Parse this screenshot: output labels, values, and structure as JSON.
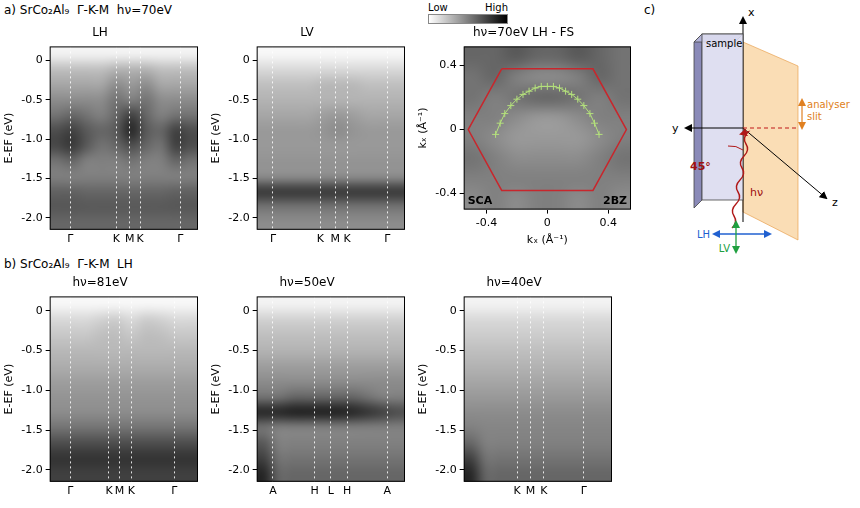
{
  "rows": [
    {
      "label": "a)",
      "title": "SrCo₂Al₉  Γ-K-M  hν=70eV"
    },
    {
      "label": "b)",
      "title": "SrCo₂Al₉  Γ-K-M  LH"
    }
  ],
  "colorbar": {
    "labels": [
      "Low",
      "High"
    ],
    "clim": [
      0,
      1
    ]
  },
  "chart_data": [
    {
      "type": "heatmap",
      "title": "LH",
      "ylabel": "E-EF (eV)",
      "grid": true,
      "xlim": [
        0,
        100
      ],
      "xticks": [
        {
          "value": 14,
          "label": "Γ"
        },
        {
          "value": 45,
          "label": "K"
        },
        {
          "value": 54,
          "label": "M"
        },
        {
          "value": 61,
          "label": "K"
        },
        {
          "value": 88,
          "label": "Γ"
        }
      ],
      "ylim": [
        -2.15,
        0.18
      ],
      "yticks": [
        0,
        -0.5,
        {
          "value": -1,
          "label": "-1.0"
        },
        -1.5,
        {
          "value": -2,
          "label": "-2.0"
        }
      ],
      "cells": [
        [
          0.05,
          0.05,
          0.05,
          0.05,
          0.05,
          0.05,
          0.05,
          0.05,
          0.05,
          0.05
        ],
        [
          0.25,
          0.25,
          0.25,
          0.25,
          0.3,
          0.3,
          0.3,
          0.25,
          0.25,
          0.25
        ],
        [
          0.35,
          0.35,
          0.35,
          0.35,
          0.45,
          0.4,
          0.45,
          0.35,
          0.35,
          0.35
        ],
        [
          0.45,
          0.45,
          0.45,
          0.45,
          0.55,
          0.5,
          0.55,
          0.45,
          0.45,
          0.45
        ],
        [
          0.55,
          0.6,
          0.55,
          0.5,
          0.6,
          0.75,
          0.6,
          0.5,
          0.55,
          0.55
        ],
        [
          0.7,
          0.75,
          0.65,
          0.6,
          0.65,
          0.85,
          0.65,
          0.6,
          0.75,
          0.7
        ],
        [
          0.72,
          0.78,
          0.65,
          0.55,
          0.6,
          0.7,
          0.6,
          0.55,
          0.75,
          0.7
        ],
        [
          0.55,
          0.6,
          0.5,
          0.5,
          0.5,
          0.55,
          0.5,
          0.5,
          0.6,
          0.55
        ],
        [
          0.5,
          0.5,
          0.5,
          0.5,
          0.5,
          0.5,
          0.5,
          0.5,
          0.5,
          0.5
        ],
        [
          0.62,
          0.62,
          0.6,
          0.6,
          0.6,
          0.6,
          0.6,
          0.6,
          0.62,
          0.62
        ],
        [
          0.66,
          0.66,
          0.65,
          0.65,
          0.65,
          0.65,
          0.65,
          0.65,
          0.66,
          0.66
        ],
        [
          0.6,
          0.6,
          0.6,
          0.6,
          0.6,
          0.6,
          0.6,
          0.6,
          0.6,
          0.6
        ]
      ]
    },
    {
      "type": "heatmap",
      "title": "LV",
      "ylabel": "E-EF (eV)",
      "grid": true,
      "xlim": [
        0,
        100
      ],
      "xticks": [
        {
          "value": 11,
          "label": "Γ"
        },
        {
          "value": 43,
          "label": "K"
        },
        {
          "value": 53,
          "label": "M"
        },
        {
          "value": 61,
          "label": "K"
        },
        {
          "value": 88,
          "label": "Γ"
        }
      ],
      "ylim": [
        -2.15,
        0.18
      ],
      "yticks": [
        0,
        -0.5,
        {
          "value": -1,
          "label": "-1.0"
        },
        -1.5,
        {
          "value": -2,
          "label": "-2.0"
        }
      ],
      "cells": [
        [
          0.03,
          0.03,
          0.03,
          0.03,
          0.03,
          0.03,
          0.03,
          0.03,
          0.03,
          0.03
        ],
        [
          0.15,
          0.15,
          0.15,
          0.15,
          0.15,
          0.15,
          0.15,
          0.15,
          0.15,
          0.15
        ],
        [
          0.25,
          0.25,
          0.25,
          0.25,
          0.28,
          0.28,
          0.28,
          0.25,
          0.25,
          0.25
        ],
        [
          0.3,
          0.3,
          0.3,
          0.3,
          0.3,
          0.3,
          0.3,
          0.3,
          0.3,
          0.3
        ],
        [
          0.35,
          0.35,
          0.35,
          0.35,
          0.38,
          0.4,
          0.38,
          0.35,
          0.35,
          0.35
        ],
        [
          0.4,
          0.4,
          0.4,
          0.4,
          0.42,
          0.45,
          0.42,
          0.4,
          0.4,
          0.4
        ],
        [
          0.4,
          0.4,
          0.4,
          0.4,
          0.4,
          0.4,
          0.4,
          0.4,
          0.4,
          0.4
        ],
        [
          0.42,
          0.42,
          0.42,
          0.42,
          0.42,
          0.42,
          0.42,
          0.42,
          0.42,
          0.42
        ],
        [
          0.45,
          0.45,
          0.45,
          0.45,
          0.45,
          0.45,
          0.45,
          0.45,
          0.45,
          0.45
        ],
        [
          0.78,
          0.78,
          0.78,
          0.78,
          0.78,
          0.78,
          0.78,
          0.78,
          0.78,
          0.78
        ],
        [
          0.55,
          0.55,
          0.55,
          0.55,
          0.55,
          0.55,
          0.55,
          0.55,
          0.55,
          0.55
        ],
        [
          0.45,
          0.45,
          0.45,
          0.45,
          0.45,
          0.45,
          0.45,
          0.45,
          0.45,
          0.45
        ]
      ]
    },
    {
      "type": "heatmap",
      "title": "hν=70eV LH - FS",
      "xlabel": "kₓ (Å⁻¹)",
      "ylabel": "kₓ (Å⁻¹)",
      "grid": false,
      "xlim": [
        -0.55,
        0.55
      ],
      "xticks": [
        -0.4,
        0,
        0.4
      ],
      "ylim": [
        -0.5,
        0.52
      ],
      "yticks": [
        -0.4,
        0,
        0.4
      ],
      "cells": [
        [
          0.6,
          0.6,
          0.65,
          0.6,
          0.6,
          0.65,
          0.6,
          0.55
        ],
        [
          0.55,
          0.6,
          0.5,
          0.45,
          0.45,
          0.5,
          0.6,
          0.55
        ],
        [
          0.55,
          0.5,
          0.55,
          0.6,
          0.6,
          0.55,
          0.5,
          0.55
        ],
        [
          0.5,
          0.5,
          0.45,
          0.4,
          0.4,
          0.45,
          0.5,
          0.5
        ],
        [
          0.5,
          0.45,
          0.4,
          0.4,
          0.4,
          0.4,
          0.45,
          0.5
        ],
        [
          0.55,
          0.5,
          0.45,
          0.45,
          0.45,
          0.45,
          0.5,
          0.55
        ],
        [
          0.5,
          0.5,
          0.5,
          0.5,
          0.5,
          0.5,
          0.5,
          0.5
        ],
        [
          0.45,
          0.5,
          0.45,
          0.5,
          0.5,
          0.45,
          0.5,
          0.45
        ]
      ],
      "hexagon": {
        "x": [
          -0.3,
          0.3,
          0.52,
          0.3,
          -0.3,
          -0.52
        ],
        "y": [
          0.38,
          0.38,
          0,
          -0.38,
          -0.38,
          0
        ],
        "color": "#c8262c",
        "line_style": "solid"
      },
      "contour": {
        "x": [
          -0.34,
          -0.31,
          -0.28,
          -0.24,
          -0.2,
          -0.16,
          -0.12,
          -0.08,
          -0.04,
          0,
          0.04,
          0.08,
          0.12,
          0.16,
          0.2,
          0.24,
          0.28,
          0.31,
          0.34
        ],
        "y": [
          -0.03,
          0.04,
          0.1,
          0.15,
          0.19,
          0.22,
          0.24,
          0.26,
          0.27,
          0.27,
          0.27,
          0.26,
          0.24,
          0.22,
          0.19,
          0.15,
          0.1,
          0.04,
          -0.03
        ],
        "color": "#b4e07c",
        "marker": "cross",
        "line_style": "solid"
      },
      "annotations": [
        "SCA",
        "2BZ"
      ]
    },
    {
      "type": "heatmap",
      "title": "hν=81eV",
      "ylabel": "E-EF (eV)",
      "grid": true,
      "xlim": [
        0,
        100
      ],
      "xticks": [
        {
          "value": 14,
          "label": "Γ"
        },
        {
          "value": 40,
          "label": "K"
        },
        {
          "value": 47,
          "label": "M"
        },
        {
          "value": 55,
          "label": "K"
        },
        {
          "value": 84,
          "label": "Γ"
        }
      ],
      "ylim": [
        -2.15,
        0.18
      ],
      "yticks": [
        0,
        -0.5,
        {
          "value": -1,
          "label": "-1.0"
        },
        -1.5,
        {
          "value": -2,
          "label": "-2.0"
        }
      ],
      "cells": [
        [
          0.03,
          0.03,
          0.03,
          0.03,
          0.03,
          0.03,
          0.03,
          0.03,
          0.03,
          0.03
        ],
        [
          0.15,
          0.15,
          0.15,
          0.18,
          0.2,
          0.15,
          0.2,
          0.18,
          0.15,
          0.15
        ],
        [
          0.22,
          0.22,
          0.22,
          0.25,
          0.26,
          0.22,
          0.26,
          0.25,
          0.22,
          0.22
        ],
        [
          0.28,
          0.28,
          0.28,
          0.28,
          0.28,
          0.28,
          0.28,
          0.28,
          0.28,
          0.28
        ],
        [
          0.32,
          0.32,
          0.32,
          0.32,
          0.32,
          0.32,
          0.32,
          0.32,
          0.32,
          0.32
        ],
        [
          0.38,
          0.38,
          0.38,
          0.38,
          0.38,
          0.38,
          0.38,
          0.38,
          0.38,
          0.38
        ],
        [
          0.42,
          0.42,
          0.42,
          0.42,
          0.42,
          0.42,
          0.42,
          0.42,
          0.42,
          0.42
        ],
        [
          0.45,
          0.45,
          0.45,
          0.45,
          0.45,
          0.45,
          0.45,
          0.45,
          0.45,
          0.45
        ],
        [
          0.55,
          0.55,
          0.55,
          0.55,
          0.55,
          0.55,
          0.55,
          0.55,
          0.55,
          0.55
        ],
        [
          0.7,
          0.7,
          0.7,
          0.7,
          0.7,
          0.7,
          0.7,
          0.7,
          0.7,
          0.7
        ],
        [
          0.8,
          0.8,
          0.8,
          0.8,
          0.8,
          0.8,
          0.8,
          0.8,
          0.8,
          0.8
        ],
        [
          0.75,
          0.75,
          0.75,
          0.75,
          0.75,
          0.75,
          0.75,
          0.75,
          0.75,
          0.75
        ]
      ]
    },
    {
      "type": "heatmap",
      "title": "hν=50eV",
      "ylabel": "E-EF (eV)",
      "grid": true,
      "xlim": [
        0,
        100
      ],
      "xticks": [
        {
          "value": 11,
          "label": "A"
        },
        {
          "value": 39,
          "label": "H"
        },
        {
          "value": 50,
          "label": "L"
        },
        {
          "value": 61,
          "label": "H"
        },
        {
          "value": 88,
          "label": "A"
        }
      ],
      "ylim": [
        -2.15,
        0.18
      ],
      "yticks": [
        0,
        -0.5,
        {
          "value": -1,
          "label": "-1.0"
        },
        -1.5,
        {
          "value": -2,
          "label": "-2.0"
        }
      ],
      "cells": [
        [
          0.05,
          0.05,
          0.05,
          0.05,
          0.05,
          0.05,
          0.05,
          0.05,
          0.05,
          0.05
        ],
        [
          0.18,
          0.18,
          0.18,
          0.18,
          0.18,
          0.18,
          0.18,
          0.18,
          0.18,
          0.18
        ],
        [
          0.25,
          0.25,
          0.25,
          0.25,
          0.25,
          0.25,
          0.25,
          0.25,
          0.25,
          0.25
        ],
        [
          0.3,
          0.3,
          0.3,
          0.3,
          0.3,
          0.3,
          0.3,
          0.3,
          0.3,
          0.3
        ],
        [
          0.38,
          0.38,
          0.38,
          0.38,
          0.38,
          0.38,
          0.38,
          0.38,
          0.38,
          0.38
        ],
        [
          0.45,
          0.45,
          0.45,
          0.45,
          0.45,
          0.45,
          0.45,
          0.45,
          0.45,
          0.45
        ],
        [
          0.55,
          0.55,
          0.6,
          0.6,
          0.6,
          0.6,
          0.6,
          0.55,
          0.5,
          0.5
        ],
        [
          0.85,
          0.85,
          0.88,
          0.88,
          0.88,
          0.88,
          0.85,
          0.8,
          0.75,
          0.7
        ],
        [
          0.55,
          0.5,
          0.5,
          0.5,
          0.5,
          0.5,
          0.5,
          0.5,
          0.5,
          0.5
        ],
        [
          0.65,
          0.5,
          0.5,
          0.5,
          0.5,
          0.5,
          0.5,
          0.5,
          0.5,
          0.5
        ],
        [
          0.75,
          0.55,
          0.55,
          0.55,
          0.55,
          0.55,
          0.55,
          0.55,
          0.55,
          0.55
        ],
        [
          0.85,
          0.6,
          0.6,
          0.6,
          0.6,
          0.6,
          0.6,
          0.6,
          0.6,
          0.6
        ]
      ]
    },
    {
      "type": "heatmap",
      "title": "hν=40eV",
      "ylabel": "E-EF (eV)",
      "grid": true,
      "xlim": [
        0,
        100
      ],
      "xticks": [
        {
          "value": 36,
          "label": "K"
        },
        {
          "value": 45,
          "label": "M"
        },
        {
          "value": 54,
          "label": "K"
        },
        {
          "value": 81,
          "label": "Γ"
        }
      ],
      "ylim": [
        -2.15,
        0.18
      ],
      "yticks": [
        0,
        -0.5,
        {
          "value": -1,
          "label": "-1.0"
        },
        -1.5,
        {
          "value": -2,
          "label": "-2.0"
        }
      ],
      "cells": [
        [
          0.05,
          0.05,
          0.05,
          0.05,
          0.05,
          0.05,
          0.05,
          0.05,
          0.05,
          0.05
        ],
        [
          0.15,
          0.15,
          0.15,
          0.15,
          0.15,
          0.15,
          0.15,
          0.15,
          0.15,
          0.15
        ],
        [
          0.2,
          0.2,
          0.2,
          0.2,
          0.2,
          0.2,
          0.2,
          0.2,
          0.2,
          0.2
        ],
        [
          0.25,
          0.25,
          0.25,
          0.25,
          0.25,
          0.25,
          0.25,
          0.25,
          0.25,
          0.25
        ],
        [
          0.3,
          0.3,
          0.3,
          0.3,
          0.3,
          0.3,
          0.3,
          0.3,
          0.3,
          0.3
        ],
        [
          0.35,
          0.35,
          0.35,
          0.35,
          0.35,
          0.35,
          0.35,
          0.35,
          0.35,
          0.35
        ],
        [
          0.4,
          0.4,
          0.4,
          0.4,
          0.4,
          0.4,
          0.4,
          0.4,
          0.4,
          0.4
        ],
        [
          0.45,
          0.45,
          0.45,
          0.45,
          0.45,
          0.45,
          0.45,
          0.45,
          0.45,
          0.45
        ],
        [
          0.5,
          0.48,
          0.48,
          0.48,
          0.48,
          0.48,
          0.48,
          0.48,
          0.48,
          0.48
        ],
        [
          0.6,
          0.5,
          0.5,
          0.5,
          0.5,
          0.5,
          0.5,
          0.5,
          0.5,
          0.5
        ],
        [
          0.75,
          0.55,
          0.55,
          0.55,
          0.55,
          0.55,
          0.55,
          0.55,
          0.55,
          0.55
        ],
        [
          0.85,
          0.6,
          0.6,
          0.6,
          0.6,
          0.6,
          0.6,
          0.6,
          0.6,
          0.6
        ]
      ]
    }
  ],
  "diagram": {
    "label": "c)",
    "axes": [
      "x",
      "y",
      "z"
    ],
    "sample": "sample",
    "slit": "analyser slit",
    "angle": "45°",
    "photon": "hν",
    "polarizations": [
      {
        "name": "LH",
        "color": "#2060d0"
      },
      {
        "name": "LV",
        "color": "#20a040"
      }
    ]
  }
}
